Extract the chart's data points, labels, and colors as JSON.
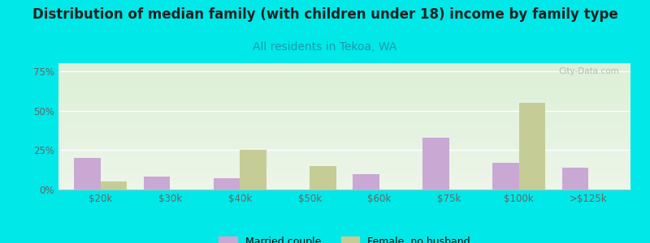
{
  "title": "Distribution of median family (with children under 18) income by family type",
  "subtitle": "All residents in Tekoa, WA",
  "categories": [
    "$20k",
    "$30k",
    "$40k",
    "$50k",
    "$60k",
    "$75k",
    "$100k",
    ">$125k"
  ],
  "married_couple": [
    20,
    8,
    7,
    0,
    10,
    33,
    17,
    14
  ],
  "female_no_husband": [
    5,
    0,
    25,
    15,
    0,
    0,
    55,
    0
  ],
  "married_color": "#c9a8d4",
  "female_color": "#c5cc96",
  "fig_bg_color": "#00e8e8",
  "plot_bg_color": "#e2f0e0",
  "title_fontsize": 12,
  "subtitle_fontsize": 10,
  "subtitle_color": "#1a9aaa",
  "yticks": [
    0,
    25,
    50,
    75
  ],
  "ylim": [
    0,
    80
  ],
  "bar_width": 0.38,
  "watermark": "City-Data.com",
  "legend_married": "Married couple",
  "legend_female": "Female, no husband"
}
